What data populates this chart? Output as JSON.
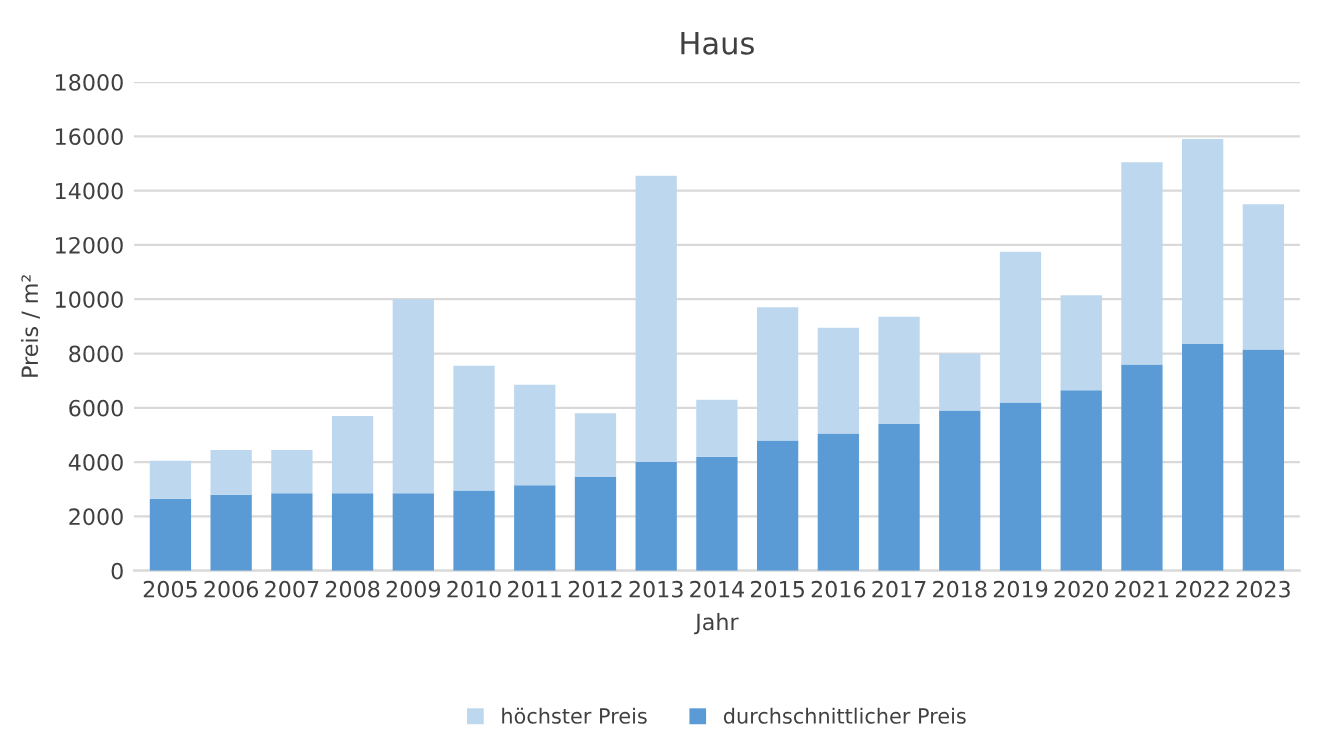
{
  "chart_data": {
    "type": "bar",
    "title": "Haus",
    "xlabel": "Jahr",
    "ylabel": "Preis / m²",
    "stacked": true,
    "categories": [
      "2005",
      "2006",
      "2007",
      "2008",
      "2009",
      "2010",
      "2011",
      "2012",
      "2013",
      "2014",
      "2015",
      "2016",
      "2017",
      "2018",
      "2019",
      "2020",
      "2021",
      "2022",
      "2023"
    ],
    "series": [
      {
        "name": "durchschnittlicher Preis",
        "color": "#5b9bd5",
        "values": [
          2650,
          2800,
          2850,
          2850,
          2850,
          2950,
          3150,
          3450,
          4000,
          4200,
          4800,
          5050,
          5400,
          5900,
          6200,
          6650,
          7600,
          8350,
          8150
        ]
      },
      {
        "name": "höchster Preis",
        "color": "#bdd7ee",
        "values": [
          1400,
          1650,
          1600,
          2850,
          7150,
          4600,
          3700,
          2350,
          10550,
          2100,
          4900,
          3900,
          3950,
          2100,
          5550,
          3500,
          7450,
          7550,
          5350
        ]
      }
    ],
    "ylim": [
      0,
      18000
    ],
    "yticks": [
      0,
      2000,
      4000,
      6000,
      8000,
      10000,
      12000,
      14000,
      16000,
      18000
    ],
    "grid": "y",
    "legend": "bottom"
  }
}
